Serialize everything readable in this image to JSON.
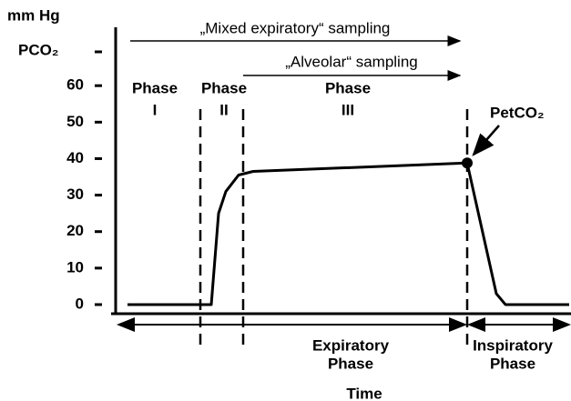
{
  "chart_data": {
    "type": "line",
    "y_units": "mm Hg",
    "ylabel": "PCO₂",
    "xlabel": "Time",
    "xlim": [
      0,
      100
    ],
    "ylim": [
      -2.5,
      76
    ],
    "yticks": [
      0,
      10,
      20,
      30,
      40,
      50,
      60
    ],
    "color": "#000000",
    "x": [
      2.6,
      21,
      22.6,
      24.2,
      27,
      30.2,
      77.2,
      83.6,
      85.6,
      99.6
    ],
    "values": [
      0,
      0,
      25,
      31,
      35.5,
      36.5,
      38.8,
      3,
      0,
      0
    ],
    "phase_boundaries": [
      18.6,
      28,
      77.2
    ],
    "phases": [
      {
        "label": [
          "Phase",
          "I"
        ]
      },
      {
        "label": [
          "Phase",
          "II"
        ]
      },
      {
        "label": [
          "Phase",
          "III"
        ]
      }
    ],
    "end_tidal": {
      "label": "PetCO₂",
      "x": 77.2,
      "value": 38.8
    },
    "sampling": [
      "„Mixed expiratory“ sampling",
      "„Alveolar“ sampling"
    ],
    "periods": [
      {
        "label": [
          "Expiratory",
          "Phase"
        ]
      },
      {
        "label": [
          "Inspiratory",
          "Phase"
        ]
      }
    ]
  }
}
